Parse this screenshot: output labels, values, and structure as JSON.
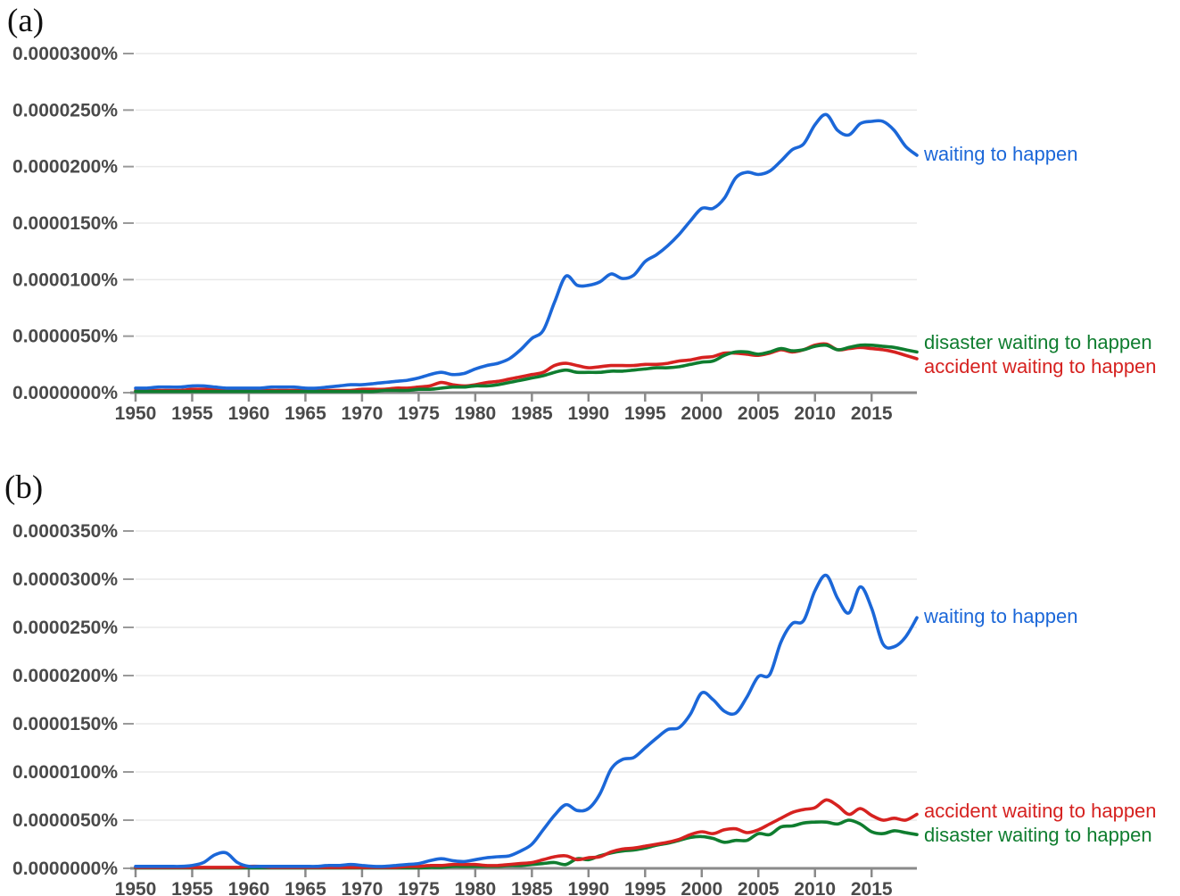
{
  "units_note": "series values are expressed in units of 0.0000001 percent (1e-7 %)",
  "chart_data": [
    {
      "panel_label": "(a)",
      "type": "line",
      "title": "",
      "xlabel": "",
      "ylabel": "",
      "grid": "horizontal",
      "legend_position": "right-end-of-line",
      "x_start_year": 1950,
      "x_end_year": 2019,
      "x_tick_step_years": 5,
      "x_tick_labels": [
        "1950",
        "1955",
        "1960",
        "1965",
        "1970",
        "1975",
        "1980",
        "1985",
        "1990",
        "1995",
        "2000",
        "2005",
        "2010",
        "2015"
      ],
      "y_tick_labels": [
        "0.0000300%",
        "0.0000250%",
        "0.0000200%",
        "0.0000150%",
        "0.0000100%",
        "0.0000050%",
        "0.0000000%"
      ],
      "y_max_e7_percent": 300,
      "ylim_percent": [
        0,
        3e-05
      ],
      "years": [
        1950,
        1951,
        1952,
        1953,
        1954,
        1955,
        1956,
        1957,
        1958,
        1959,
        1960,
        1961,
        1962,
        1963,
        1964,
        1965,
        1966,
        1967,
        1968,
        1969,
        1970,
        1971,
        1972,
        1973,
        1974,
        1975,
        1976,
        1977,
        1978,
        1979,
        1980,
        1981,
        1982,
        1983,
        1984,
        1985,
        1986,
        1987,
        1988,
        1989,
        1990,
        1991,
        1992,
        1993,
        1994,
        1995,
        1996,
        1997,
        1998,
        1999,
        2000,
        2001,
        2002,
        2003,
        2004,
        2005,
        2006,
        2007,
        2008,
        2009,
        2010,
        2011,
        2012,
        2013,
        2014,
        2015,
        2016,
        2017,
        2018,
        2019
      ],
      "series": [
        {
          "name": "accident waiting to happen",
          "color": "#d62220",
          "values_e7_percent": [
            2,
            2,
            2,
            2,
            2,
            3,
            3,
            3,
            3,
            3,
            2,
            2,
            2,
            2,
            2,
            2,
            2,
            2,
            2,
            2,
            3,
            3,
            3,
            4,
            4,
            5,
            6,
            9,
            7,
            6,
            7,
            9,
            10,
            12,
            14,
            16,
            18,
            24,
            26,
            24,
            22,
            23,
            24,
            24,
            24,
            25,
            25,
            26,
            28,
            29,
            31,
            32,
            35,
            35,
            34,
            33,
            35,
            38,
            36,
            38,
            42,
            43,
            38,
            39,
            40,
            39,
            38,
            36,
            33,
            30
          ]
        },
        {
          "name": "disaster waiting to happen",
          "color": "#0f7d2f",
          "values_e7_percent": [
            1,
            1,
            1,
            1,
            1,
            1,
            1,
            1,
            1,
            1,
            1,
            1,
            1,
            1,
            1,
            1,
            1,
            1,
            1,
            1,
            1,
            1,
            2,
            2,
            2,
            3,
            3,
            4,
            5,
            5,
            6,
            6,
            7,
            9,
            11,
            13,
            15,
            18,
            20,
            18,
            18,
            18,
            19,
            19,
            20,
            21,
            22,
            22,
            23,
            25,
            27,
            28,
            33,
            36,
            36,
            34,
            36,
            39,
            37,
            38,
            41,
            42,
            38,
            40,
            42,
            42,
            41,
            40,
            38,
            36
          ]
        },
        {
          "name": "waiting to happen",
          "color": "#1b67d8",
          "values_e7_percent": [
            4,
            4,
            5,
            5,
            5,
            6,
            6,
            5,
            4,
            4,
            4,
            4,
            5,
            5,
            5,
            4,
            4,
            5,
            6,
            7,
            7,
            8,
            9,
            10,
            11,
            13,
            16,
            18,
            16,
            17,
            21,
            24,
            26,
            30,
            38,
            48,
            55,
            80,
            103,
            95,
            95,
            98,
            105,
            101,
            104,
            116,
            122,
            130,
            140,
            152,
            163,
            163,
            172,
            190,
            195,
            193,
            196,
            205,
            215,
            220,
            237,
            246,
            232,
            228,
            238,
            240,
            240,
            232,
            218,
            210
          ]
        }
      ]
    },
    {
      "panel_label": "(b)",
      "type": "line",
      "title": "",
      "xlabel": "",
      "ylabel": "",
      "grid": "horizontal",
      "legend_position": "right-end-of-line",
      "x_start_year": 1950,
      "x_end_year": 2019,
      "x_tick_step_years": 5,
      "x_tick_labels": [
        "1950",
        "1955",
        "1960",
        "1965",
        "1970",
        "1975",
        "1980",
        "1985",
        "1990",
        "1995",
        "2000",
        "2005",
        "2010",
        "2015"
      ],
      "y_tick_labels": [
        "0.0000350%",
        "0.0000300%",
        "0.0000250%",
        "0.0000200%",
        "0.0000150%",
        "0.0000100%",
        "0.0000050%",
        "0.0000000%"
      ],
      "y_max_e7_percent": 350,
      "ylim_percent": [
        0,
        3.5e-05
      ],
      "years": [
        1950,
        1951,
        1952,
        1953,
        1954,
        1955,
        1956,
        1957,
        1958,
        1959,
        1960,
        1961,
        1962,
        1963,
        1964,
        1965,
        1966,
        1967,
        1968,
        1969,
        1970,
        1971,
        1972,
        1973,
        1974,
        1975,
        1976,
        1977,
        1978,
        1979,
        1980,
        1981,
        1982,
        1983,
        1984,
        1985,
        1986,
        1987,
        1988,
        1989,
        1990,
        1991,
        1992,
        1993,
        1994,
        1995,
        1996,
        1997,
        1998,
        1999,
        2000,
        2001,
        2002,
        2003,
        2004,
        2005,
        2006,
        2007,
        2008,
        2009,
        2010,
        2011,
        2012,
        2013,
        2014,
        2015,
        2016,
        2017,
        2018,
        2019
      ],
      "series": [
        {
          "name": "disaster waiting to happen",
          "color": "#0f7d2f",
          "values_e7_percent": [
            0.5,
            0.5,
            0.5,
            0.5,
            0.5,
            0.5,
            0.5,
            0.5,
            0.5,
            0.5,
            0.5,
            0.5,
            0.5,
            0.5,
            0.5,
            0.5,
            0.5,
            0.5,
            0.5,
            0.5,
            0.5,
            0.5,
            0.5,
            0.5,
            0.5,
            0.5,
            1,
            1,
            2,
            2,
            2,
            2,
            2,
            3,
            3,
            4,
            5,
            6,
            4,
            10,
            9,
            13,
            16,
            18,
            19,
            21,
            24,
            26,
            29,
            32,
            33,
            31,
            27,
            29,
            29,
            36,
            35,
            43,
            44,
            47,
            48,
            48,
            46,
            50,
            46,
            38,
            36,
            39,
            37,
            35
          ]
        },
        {
          "name": "accident waiting to happen",
          "color": "#d62220",
          "values_e7_percent": [
            1,
            1,
            1,
            1,
            1,
            1,
            1,
            1,
            1,
            1,
            2,
            2,
            1,
            1,
            1,
            1,
            1,
            1,
            1,
            1,
            1,
            1,
            1,
            1,
            2,
            2,
            3,
            3,
            4,
            4,
            4,
            3,
            3,
            4,
            5,
            6,
            9,
            12,
            13,
            9,
            11,
            12,
            17,
            20,
            21,
            23,
            25,
            27,
            30,
            35,
            38,
            36,
            40,
            41,
            37,
            40,
            46,
            52,
            58,
            61,
            63,
            71,
            65,
            56,
            62,
            55,
            50,
            52,
            50,
            56
          ]
        },
        {
          "name": "waiting to happen",
          "color": "#1b67d8",
          "values_e7_percent": [
            2,
            2,
            2,
            2,
            2,
            3,
            6,
            14,
            16,
            6,
            2,
            2,
            2,
            2,
            2,
            2,
            2,
            3,
            3,
            4,
            3,
            2,
            2,
            3,
            4,
            5,
            8,
            10,
            8,
            7,
            9,
            11,
            12,
            13,
            18,
            25,
            40,
            55,
            66,
            60,
            62,
            77,
            103,
            113,
            115,
            125,
            135,
            144,
            146,
            160,
            182,
            175,
            163,
            161,
            178,
            199,
            201,
            235,
            254,
            257,
            288,
            304,
            280,
            265,
            292,
            270,
            233,
            230,
            240,
            260
          ]
        }
      ]
    }
  ]
}
